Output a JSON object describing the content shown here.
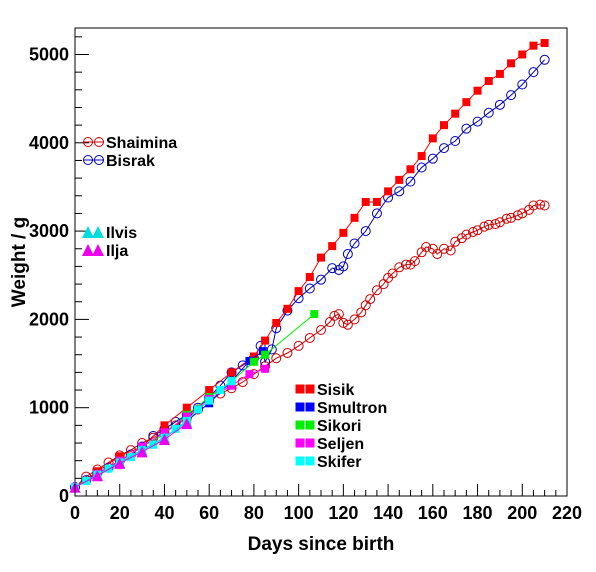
{
  "chart_data": {
    "type": "scatter",
    "title": "",
    "xlabel": "Days since birth",
    "ylabel": "Weight / g",
    "xlim": [
      0,
      220
    ],
    "ylim": [
      0,
      5300
    ],
    "xticks": [
      0,
      20,
      40,
      60,
      80,
      100,
      120,
      140,
      160,
      180,
      200,
      220
    ],
    "yticks": [
      0,
      1000,
      2000,
      3000,
      4000,
      5000
    ],
    "grid": false,
    "legends": [
      {
        "placement": "upper-left",
        "entries": [
          "Shaimina",
          "Bisrak"
        ]
      },
      {
        "placement": "middle-left",
        "entries": [
          "Ilvis",
          "Ilja"
        ]
      },
      {
        "placement": "lower-center",
        "entries": [
          "Sisik",
          "Smultron",
          "Sikori",
          "Seljen",
          "Skifer"
        ]
      }
    ],
    "series": [
      {
        "name": "Shaimina",
        "color": "#cc0000",
        "marker": "open-circle",
        "x": [
          0,
          5,
          10,
          15,
          20,
          25,
          30,
          35,
          40,
          45,
          50,
          55,
          60,
          65,
          70,
          75,
          80,
          85,
          90,
          95,
          100,
          105,
          110,
          114,
          116,
          118,
          120,
          122,
          125,
          128,
          130,
          132,
          135,
          138,
          140,
          142,
          145,
          148,
          150,
          152,
          155,
          157,
          160,
          162,
          165,
          168,
          170,
          173,
          175,
          178,
          180,
          183,
          185,
          188,
          190,
          193,
          195,
          198,
          200,
          203,
          205,
          208,
          210
        ],
        "y": [
          100,
          220,
          300,
          380,
          460,
          520,
          600,
          660,
          720,
          800,
          880,
          980,
          1080,
          1160,
          1220,
          1290,
          1380,
          1470,
          1560,
          1620,
          1700,
          1790,
          1880,
          1970,
          2040,
          2060,
          1960,
          1940,
          2000,
          2080,
          2160,
          2230,
          2330,
          2400,
          2470,
          2520,
          2590,
          2620,
          2620,
          2660,
          2760,
          2820,
          2800,
          2740,
          2800,
          2780,
          2880,
          2920,
          2960,
          2990,
          3010,
          3050,
          3070,
          3080,
          3100,
          3140,
          3150,
          3180,
          3200,
          3240,
          3290,
          3300,
          3290
        ]
      },
      {
        "name": "Bisrak",
        "color": "#0000bb",
        "marker": "open-circle",
        "x": [
          0,
          5,
          10,
          15,
          20,
          25,
          30,
          35,
          40,
          45,
          50,
          55,
          60,
          65,
          70,
          75,
          80,
          83,
          85,
          88,
          90,
          95,
          100,
          105,
          110,
          115,
          118,
          120,
          122,
          125,
          130,
          135,
          140,
          145,
          150,
          155,
          160,
          165,
          170,
          175,
          180,
          185,
          190,
          195,
          200,
          205,
          210
        ],
        "y": [
          100,
          180,
          260,
          320,
          400,
          470,
          560,
          680,
          760,
          840,
          920,
          1000,
          1120,
          1250,
          1400,
          1480,
          1560,
          1700,
          1520,
          1660,
          1900,
          2100,
          2240,
          2350,
          2450,
          2580,
          2560,
          2600,
          2740,
          2860,
          3000,
          3200,
          3380,
          3450,
          3560,
          3720,
          3820,
          3940,
          4020,
          4160,
          4240,
          4340,
          4430,
          4540,
          4660,
          4800,
          4940
        ]
      },
      {
        "name": "Sisik",
        "color": "#ff0000",
        "marker": "filled-square",
        "x": [
          0,
          10,
          20,
          30,
          40,
          50,
          60,
          70,
          80,
          85,
          90,
          95,
          100,
          105,
          110,
          115,
          120,
          125,
          130,
          135,
          140,
          145,
          150,
          155,
          160,
          165,
          170,
          175,
          180,
          185,
          190,
          195,
          200,
          205,
          210
        ],
        "y": [
          100,
          280,
          450,
          560,
          800,
          1000,
          1200,
          1400,
          1580,
          1760,
          1960,
          2120,
          2320,
          2480,
          2700,
          2830,
          2980,
          3150,
          3330,
          3330,
          3450,
          3580,
          3700,
          3850,
          4050,
          4200,
          4330,
          4460,
          4590,
          4700,
          4780,
          4900,
          5000,
          5100,
          5130
        ]
      },
      {
        "name": "Smultron",
        "color": "#0000ff",
        "marker": "filled-square",
        "x": [
          0,
          10,
          20,
          30,
          40,
          50,
          60,
          70,
          78,
          84
        ],
        "y": [
          100,
          250,
          380,
          520,
          660,
          850,
          1050,
          1300,
          1530,
          1640
        ]
      },
      {
        "name": "Sikori",
        "color": "#00ee00",
        "marker": "filled-square",
        "x": [
          0,
          10,
          20,
          30,
          40,
          50,
          60,
          70,
          80,
          85,
          107
        ],
        "y": [
          100,
          250,
          400,
          560,
          700,
          920,
          1120,
          1300,
          1520,
          1600,
          2060
        ]
      },
      {
        "name": "Seljen",
        "color": "#ff00ff",
        "marker": "filled-square",
        "x": [
          0,
          10,
          20,
          30,
          40,
          50,
          60,
          70,
          78,
          85
        ],
        "y": [
          100,
          250,
          400,
          560,
          720,
          900,
          1100,
          1250,
          1380,
          1440
        ]
      },
      {
        "name": "Skifer",
        "color": "#00ffff",
        "marker": "filled-square",
        "x": [
          0,
          5,
          10,
          15,
          20,
          25,
          30,
          35,
          40,
          45,
          50,
          55,
          60,
          65,
          70
        ],
        "y": [
          100,
          170,
          240,
          310,
          380,
          440,
          520,
          580,
          660,
          760,
          850,
          980,
          1080,
          1200,
          1300
        ]
      },
      {
        "name": "Ilvis",
        "color": "#00dddd",
        "marker": "filled-triangle",
        "x": [
          0,
          10,
          20,
          30,
          40,
          50
        ],
        "y": [
          100,
          240,
          380,
          520,
          660,
          840
        ]
      },
      {
        "name": "Ilja",
        "color": "#ee00ee",
        "marker": "filled-triangle",
        "x": [
          0,
          10,
          20,
          30,
          40,
          50
        ],
        "y": [
          100,
          230,
          370,
          500,
          640,
          820
        ]
      }
    ]
  }
}
